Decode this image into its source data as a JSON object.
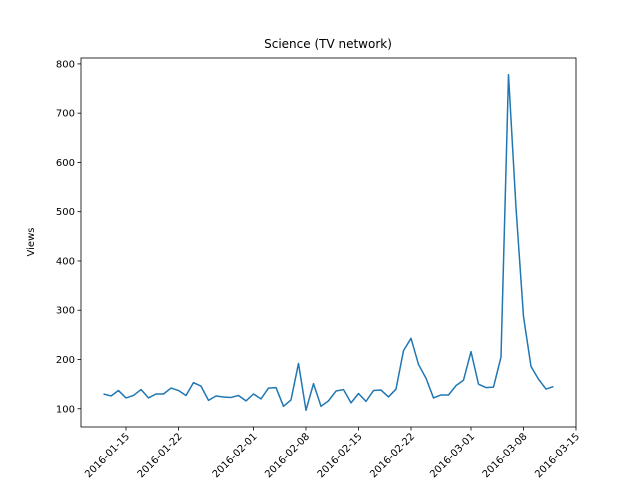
{
  "chart_data": {
    "type": "line",
    "title": "Science (TV network)",
    "ylabel": "Views",
    "x": [
      "2016-01-12",
      "2016-01-13",
      "2016-01-14",
      "2016-01-15",
      "2016-01-16",
      "2016-01-17",
      "2016-01-18",
      "2016-01-19",
      "2016-01-20",
      "2016-01-21",
      "2016-01-22",
      "2016-01-23",
      "2016-01-24",
      "2016-01-25",
      "2016-01-26",
      "2016-01-27",
      "2016-01-28",
      "2016-01-29",
      "2016-01-30",
      "2016-01-31",
      "2016-02-01",
      "2016-02-02",
      "2016-02-03",
      "2016-02-04",
      "2016-02-05",
      "2016-02-06",
      "2016-02-07",
      "2016-02-08",
      "2016-02-09",
      "2016-02-10",
      "2016-02-11",
      "2016-02-12",
      "2016-02-13",
      "2016-02-14",
      "2016-02-15",
      "2016-02-16",
      "2016-02-17",
      "2016-02-18",
      "2016-02-19",
      "2016-02-20",
      "2016-02-21",
      "2016-02-22",
      "2016-02-23",
      "2016-02-24",
      "2016-02-25",
      "2016-02-26",
      "2016-02-27",
      "2016-02-28",
      "2016-02-29",
      "2016-03-01",
      "2016-03-02",
      "2016-03-03",
      "2016-03-04",
      "2016-03-05",
      "2016-03-06",
      "2016-03-07",
      "2016-03-08",
      "2016-03-09",
      "2016-03-10",
      "2016-03-11",
      "2016-03-12"
    ],
    "series": [
      {
        "color": "#1f77b4",
        "values": [
          130,
          126,
          137,
          122,
          127,
          139,
          122,
          130,
          130,
          142,
          137,
          127,
          153,
          146,
          117,
          126,
          124,
          123,
          127,
          116,
          130,
          120,
          142,
          143,
          105,
          118,
          192,
          97,
          151,
          105,
          116,
          136,
          139,
          112,
          131,
          115,
          137,
          138,
          124,
          140,
          218,
          243,
          190,
          162,
          122,
          128,
          128,
          147,
          158,
          216,
          150,
          143,
          144,
          205,
          778,
          508,
          287,
          186,
          160,
          140,
          145
        ]
      }
    ],
    "xlim": [
      "2016-01-09",
      "2016-03-15"
    ],
    "xticks": [
      "2016-01-15",
      "2016-01-22",
      "2016-02-01",
      "2016-02-08",
      "2016-02-15",
      "2016-02-22",
      "2016-03-01",
      "2016-03-08",
      "2016-03-15"
    ],
    "ylim": [
      63,
      812
    ],
    "yticks": [
      100,
      200,
      300,
      400,
      500,
      600,
      700,
      800
    ]
  }
}
